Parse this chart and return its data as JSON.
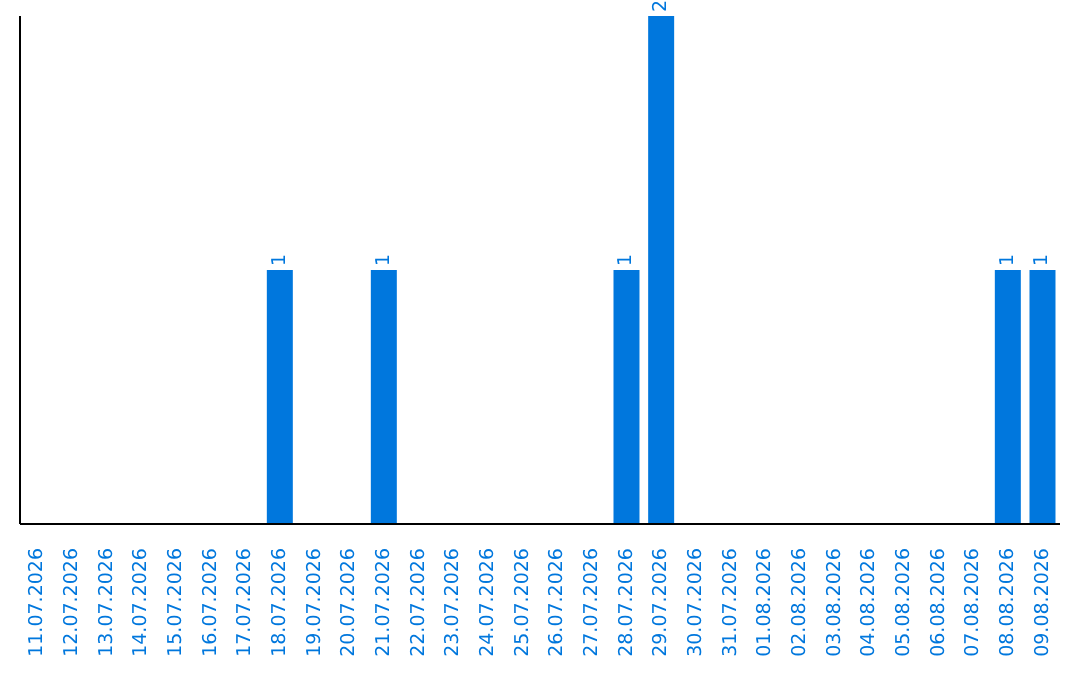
{
  "chart_data": {
    "type": "bar",
    "categories": [
      "11.07.2026",
      "12.07.2026",
      "13.07.2026",
      "14.07.2026",
      "15.07.2026",
      "16.07.2026",
      "17.07.2026",
      "18.07.2026",
      "19.07.2026",
      "20.07.2026",
      "21.07.2026",
      "22.07.2026",
      "23.07.2026",
      "24.07.2026",
      "25.07.2026",
      "26.07.2026",
      "27.07.2026",
      "28.07.2026",
      "29.07.2026",
      "30.07.2026",
      "31.07.2026",
      "01.08.2026",
      "02.08.2026",
      "03.08.2026",
      "04.08.2026",
      "05.08.2026",
      "06.08.2026",
      "07.08.2026",
      "08.08.2026",
      "09.08.2026"
    ],
    "values": [
      0,
      0,
      0,
      0,
      0,
      0,
      0,
      1,
      0,
      0,
      1,
      0,
      0,
      0,
      0,
      0,
      0,
      1,
      2,
      0,
      0,
      0,
      0,
      0,
      0,
      0,
      0,
      0,
      1,
      1
    ],
    "value_labels": [
      null,
      null,
      null,
      null,
      null,
      null,
      null,
      "1",
      null,
      null,
      "1",
      null,
      null,
      null,
      null,
      null,
      null,
      "1",
      "2",
      null,
      null,
      null,
      null,
      null,
      null,
      null,
      null,
      null,
      "1",
      "1"
    ],
    "color": "#0077dd",
    "tick_labels": "x"
  }
}
